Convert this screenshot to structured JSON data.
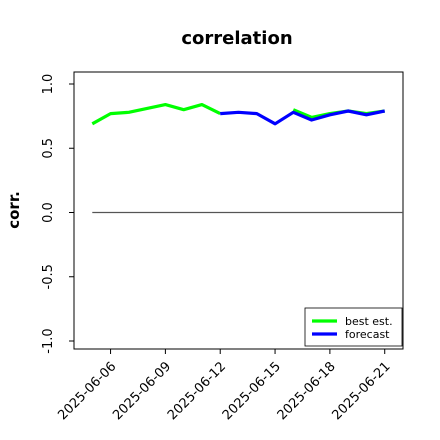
{
  "chart_data": {
    "type": "line",
    "title": "correlation",
    "ylabel": "corr.",
    "xlabel": "",
    "ylim": [
      -1.0,
      1.0
    ],
    "yticks": [
      -1.0,
      -0.5,
      0.0,
      0.5,
      1.0
    ],
    "ytick_labels": [
      "-1.0",
      "-0.5",
      "0.0",
      "0.5",
      "1.0"
    ],
    "xtick_labels": [
      "2025-06-06",
      "2025-06-09",
      "2025-06-12",
      "2025-06-15",
      "2025-06-18",
      "2025-06-21"
    ],
    "xtick_dates": [
      "2025-06-06",
      "2025-06-09",
      "2025-06-12",
      "2025-06-15",
      "2025-06-18",
      "2025-06-21"
    ],
    "highlight_tick": "2025-06-12",
    "highlight_color": "#228B22",
    "xlim": [
      "2025-06-04",
      "2025-06-22"
    ],
    "grid": false,
    "legend_position": "lower right",
    "reference_line": {
      "y": 0.0,
      "from": "2025-06-05",
      "to": "2025-06-22",
      "color": "#555555"
    },
    "series": [
      {
        "name": "best est.",
        "color": "#00ff00",
        "x": [
          "2025-06-05",
          "2025-06-06",
          "2025-06-07",
          "2025-06-08",
          "2025-06-09",
          "2025-06-10",
          "2025-06-11",
          "2025-06-12"
        ],
        "values": [
          0.69,
          0.77,
          0.78,
          0.81,
          0.84,
          0.8,
          0.84,
          0.77
        ]
      },
      {
        "name": "best est.",
        "color": "#00ff00",
        "x": [
          "2025-06-16",
          "2025-06-17",
          "2025-06-18",
          "2025-06-19",
          "2025-06-20",
          "2025-06-21"
        ],
        "values": [
          0.8,
          0.74,
          0.77,
          0.79,
          0.77,
          0.79
        ]
      },
      {
        "name": "forecast",
        "color": "#0000ff",
        "x": [
          "2025-06-12",
          "2025-06-13",
          "2025-06-14",
          "2025-06-15",
          "2025-06-16",
          "2025-06-17",
          "2025-06-18",
          "2025-06-19",
          "2025-06-20",
          "2025-06-21"
        ],
        "values": [
          0.77,
          0.78,
          0.77,
          0.69,
          0.78,
          0.72,
          0.76,
          0.79,
          0.76,
          0.79
        ]
      }
    ],
    "legend": [
      {
        "label": "best est.",
        "color": "#00ff00"
      },
      {
        "label": "forecast",
        "color": "#0000ff"
      }
    ]
  }
}
